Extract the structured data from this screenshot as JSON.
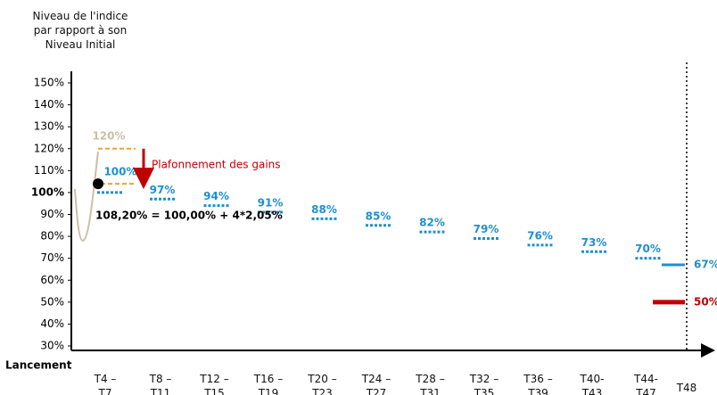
{
  "y_axis_title": "Niveau de l'indice\npar rapport à son\nNiveau Initial",
  "chart_data": {
    "type": "autocall",
    "categories": [
      "T4 –\nT7",
      "T8 –\nT11",
      "T12 –\nT15",
      "T16 –\nT19",
      "T20 –\nT23",
      "T24 –\nT27",
      "T28 –\nT31",
      "T32 –\nT35",
      "T36 –\nT39",
      "T40-\nT43",
      "T44-\nT47",
      "T48"
    ],
    "ylim": [
      30,
      150
    ],
    "yticks": [
      {
        "value": 30,
        "label": "30%"
      },
      {
        "value": 40,
        "label": "40%"
      },
      {
        "value": 50,
        "label": "50%"
      },
      {
        "value": 60,
        "label": "60%"
      },
      {
        "value": 70,
        "label": "70%"
      },
      {
        "value": 80,
        "label": "80%"
      },
      {
        "value": 90,
        "label": "90%"
      },
      {
        "value": 100,
        "label": "100%"
      },
      {
        "value": 110,
        "label": "110%"
      },
      {
        "value": 120,
        "label": "120%"
      },
      {
        "value": 130,
        "label": "130%"
      },
      {
        "value": 140,
        "label": "140%"
      },
      {
        "value": 150,
        "label": "150%"
      }
    ],
    "bold_tick": 100,
    "barriers": {
      "color": "#1f8fd0",
      "values": [
        100,
        97,
        94,
        91,
        88,
        85,
        82,
        79,
        76,
        73,
        70
      ],
      "value_labels": [
        "100%",
        "97%",
        "94%",
        "91%",
        "88%",
        "85%",
        "82%",
        "79%",
        "76%",
        "73%",
        "70%"
      ]
    },
    "final_levels": [
      {
        "value": 67,
        "label": "67%",
        "color": "#1f8fd0"
      },
      {
        "value": 50,
        "label": "50%",
        "color": "#c00000"
      }
    ],
    "cap": {
      "value": 120,
      "label": "120%",
      "color": "#f0a030",
      "label_color": "#cbbfa5"
    },
    "gain_level": 104,
    "cap_annotation": {
      "text": "Plafonnement des gains",
      "color": "#c00000"
    },
    "formula": "108,20% = 100,00% + 4*2,05%",
    "x_start_label": "Lancement"
  }
}
